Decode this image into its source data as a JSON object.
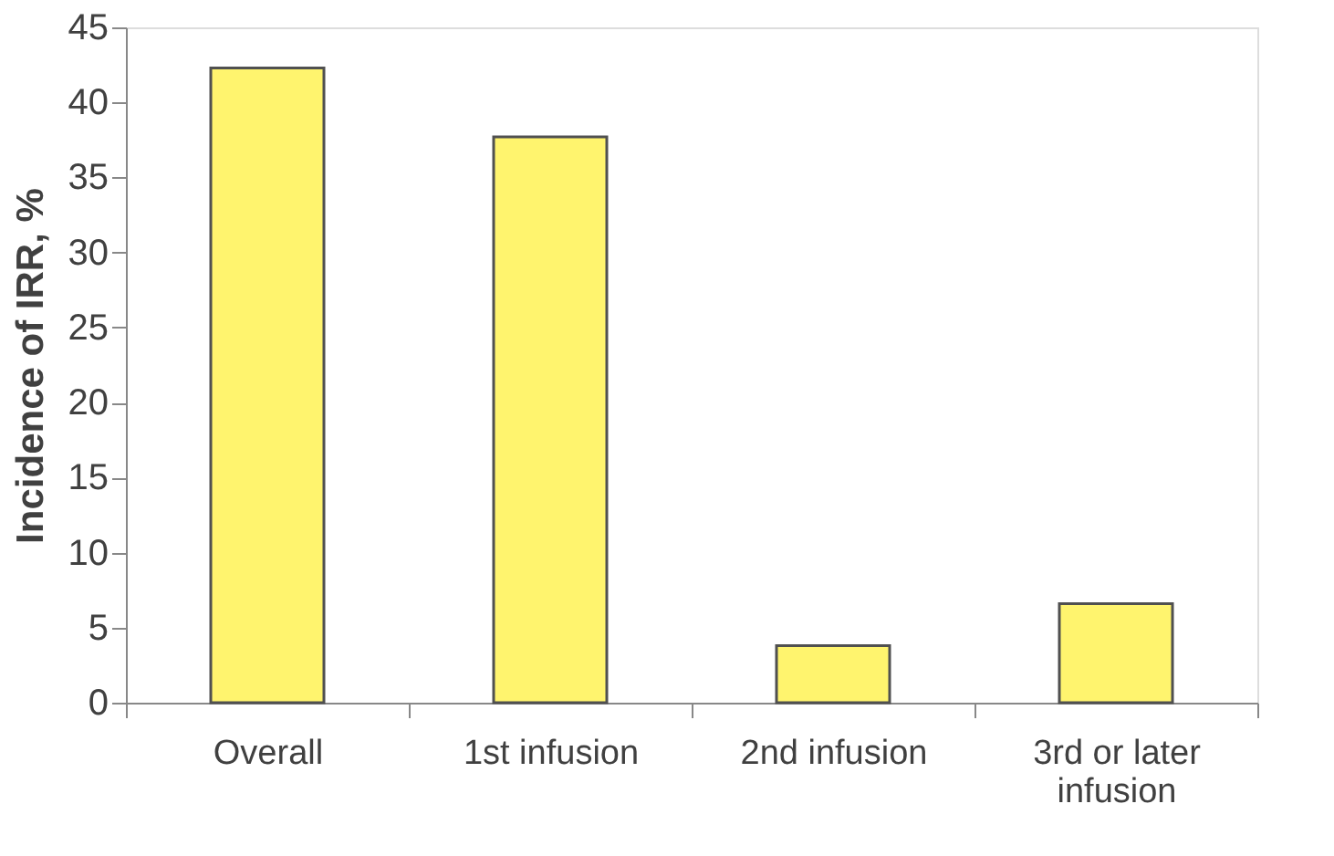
{
  "chart_data": {
    "type": "bar",
    "ylabel": "Incidence of IRR, %",
    "categories": [
      "Overall",
      "1st infusion",
      "2nd infusion",
      "3rd or later infusion"
    ],
    "values": [
      42.3,
      37.7,
      3.8,
      6.6
    ],
    "color": "#fff46e",
    "ylim": [
      0,
      45
    ],
    "yticks": [
      0,
      5,
      10,
      15,
      20,
      25,
      30,
      35,
      40,
      45
    ],
    "grid": false
  }
}
